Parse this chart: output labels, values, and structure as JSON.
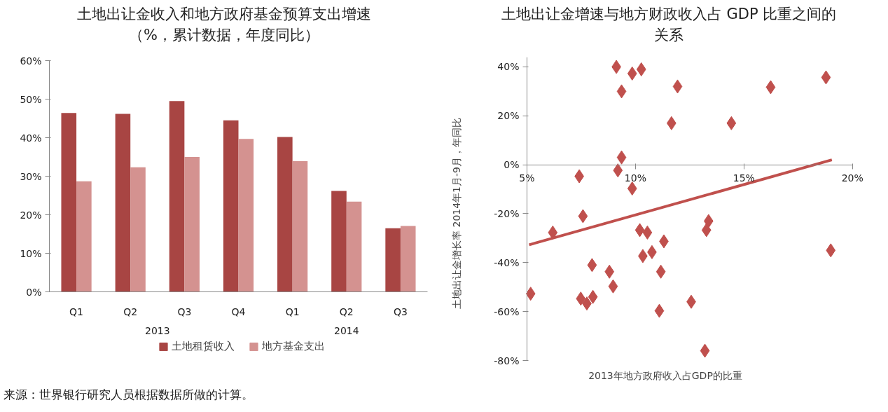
{
  "chart_data": [
    {
      "type": "bar",
      "title": "土地出让金收入和地方政府基金预算支出增速（%，累计数据，年度同比）",
      "categories": [
        "Q1",
        "Q2",
        "Q3",
        "Q4",
        "Q1",
        "Q2",
        "Q3"
      ],
      "annotations": [
        "2013",
        "2014"
      ],
      "series": [
        {
          "name": "土地租赁收入",
          "color": "#a84543",
          "values": [
            46.4,
            46.2,
            49.5,
            44.5,
            40.2,
            26.2,
            16.5
          ]
        },
        {
          "name": "地方基金支出",
          "color": "#d49290",
          "values": [
            28.7,
            32.3,
            35.0,
            39.7,
            33.9,
            23.4,
            17.1
          ]
        }
      ],
      "ylim": [
        0,
        60
      ],
      "yticks": [
        {
          "value": 0,
          "label": "0%"
        },
        {
          "value": 10,
          "label": "10%"
        },
        {
          "value": 20,
          "label": "20%"
        },
        {
          "value": 30,
          "label": "30%"
        },
        {
          "value": 40,
          "label": "40%"
        },
        {
          "value": 50,
          "label": "50%"
        },
        {
          "value": 60,
          "label": "60%"
        }
      ],
      "grid": false,
      "legend": "bottom"
    },
    {
      "type": "scatter",
      "title": "土地出让金增速与地方财政收入占 GDP 比重之间的关系",
      "xlabel": "2013年地方政府收入占GDP的比重",
      "ylabel": "土地出让金增长率 2014年1月-9月，年同比",
      "annotations": [
        "来源：世界银行研究人员根据数据所做的计算。"
      ],
      "series": [
        {
          "color": "#c0504d",
          "marker": "diamond",
          "x": [
            9.12,
            9.85,
            10.27,
            9.36,
            11.94,
            11.66,
            14.42,
            16.23,
            18.78,
            9.36,
            9.19,
            7.41,
            9.85,
            7.58,
            6.19,
            10.2,
            10.55,
            13.37,
            13.27,
            11.31,
            10.34,
            10.76,
            8.0,
            8.8,
            11.17,
            8.97,
            5.17,
            19.0,
            7.48,
            7.76,
            8.04,
            11.1,
            12.57,
            13.2
          ],
          "values": [
            40,
            37.3,
            39,
            30,
            32,
            17,
            17,
            31.7,
            35.7,
            3,
            -2.3,
            -4.7,
            -9.7,
            -21,
            -27.7,
            -26.7,
            -27.7,
            -23,
            -26.7,
            -31.3,
            -37.3,
            -35.7,
            -41,
            -43.7,
            -43.7,
            -49.7,
            -52.7,
            -35,
            -54.7,
            -56.7,
            -54,
            -59.7,
            -56,
            -76
          ]
        },
        {
          "type": "line",
          "color": "#c0504d",
          "marker": "none",
          "x": [
            5.1,
            19.05
          ],
          "values": [
            -32.7,
            2.0
          ]
        }
      ],
      "xlim": [
        5,
        20
      ],
      "xticks": [
        {
          "value": 5,
          "label": "5%"
        },
        {
          "value": 10,
          "label": "10%"
        },
        {
          "value": 15,
          "label": "15%"
        },
        {
          "value": 20,
          "label": "20%"
        }
      ],
      "ylim": [
        -80,
        44
      ],
      "yticks": [
        {
          "value": -80,
          "label": "-80%"
        },
        {
          "value": -60,
          "label": "-60%"
        },
        {
          "value": -40,
          "label": "-40%"
        },
        {
          "value": -20,
          "label": "-20%"
        },
        {
          "value": 0,
          "label": "0%"
        },
        {
          "value": 20,
          "label": "20%"
        },
        {
          "value": 40,
          "label": "40%"
        }
      ],
      "grid": false,
      "legend": false
    }
  ]
}
